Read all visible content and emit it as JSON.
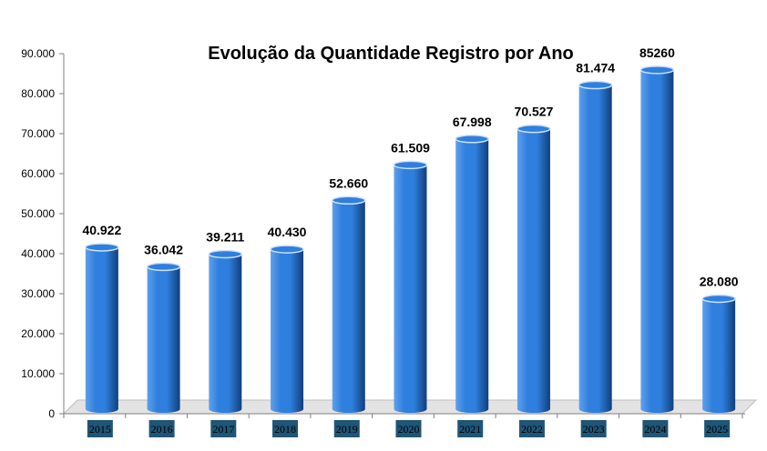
{
  "colors": {
    "bar_light": "#5fa0ec",
    "bar_mid": "#2f7fde",
    "bar_dark": "#113f7c",
    "bar_top": "#cfe1f7",
    "floor": "#e3e3e3",
    "xtick_bg": "#1f5577",
    "axis": "#7f7f7f"
  },
  "chart_data": {
    "type": "bar",
    "title": "Evolução da Quantidade Registro por Ano",
    "xlabel": "",
    "ylabel": "",
    "ylim": [
      0,
      90000
    ],
    "yticks": [
      0,
      10000,
      20000,
      30000,
      40000,
      50000,
      60000,
      70000,
      80000,
      90000
    ],
    "ytick_labels": [
      "0",
      "10.000",
      "20.000",
      "30.000",
      "40.000",
      "50.000",
      "60.000",
      "70.000",
      "80.000",
      "90.000"
    ],
    "categories": [
      "2015",
      "2016",
      "2017",
      "2018",
      "2019",
      "2020",
      "2021",
      "2022",
      "2023",
      "2024",
      "2025"
    ],
    "values": [
      40922,
      36042,
      39211,
      40430,
      52660,
      61509,
      67998,
      70527,
      81474,
      85260,
      28080
    ],
    "data_labels": [
      "40.922",
      "36.042",
      "39.211",
      "40.430",
      "52.660",
      "61.509",
      "67.998",
      "70.527",
      "81.474",
      "85260",
      "28.080"
    ],
    "grid": false,
    "legend": "none"
  }
}
